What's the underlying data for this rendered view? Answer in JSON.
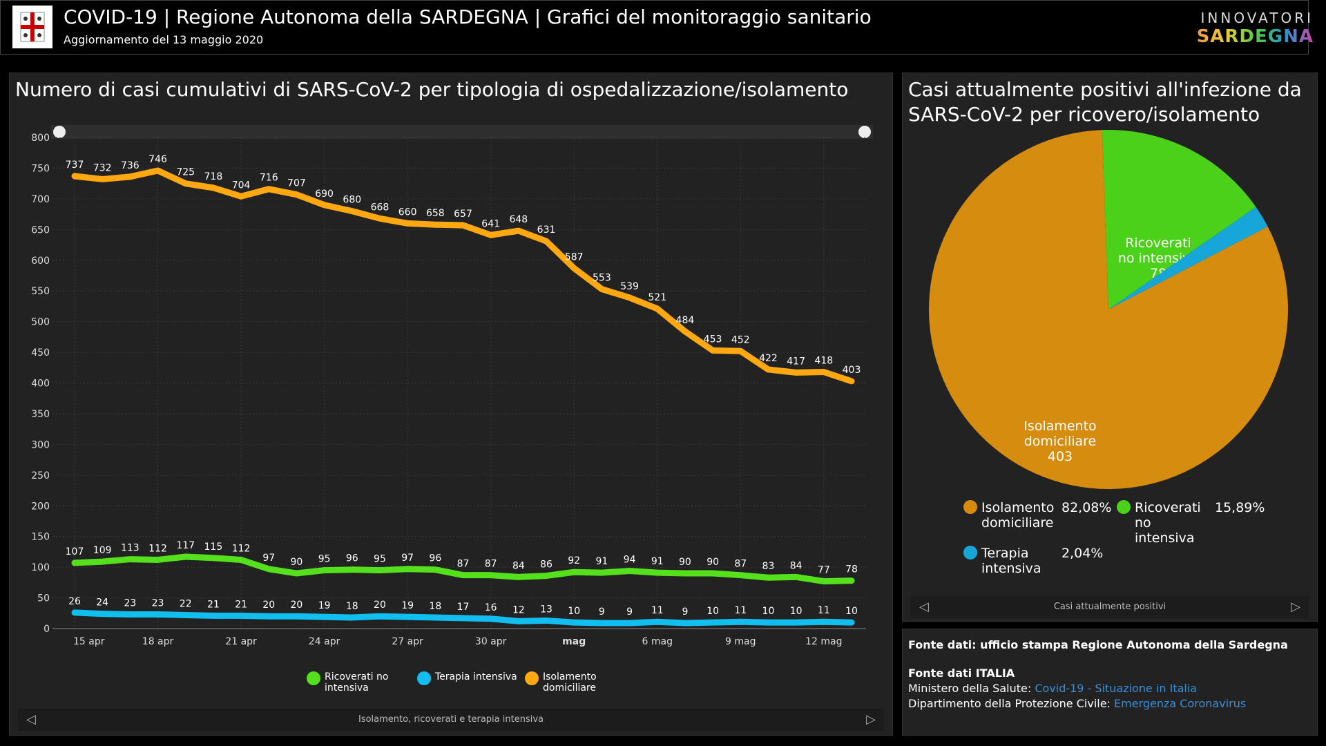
{
  "header": {
    "title": "COVID-19 | Regione Autonoma della SARDEGNA | Grafici del monitoraggio sanitario",
    "subtitle": "Aggiornamento del 13 maggio 2020",
    "brand_top": "INNOVATORI",
    "brand_bottom": "SARDEGNA"
  },
  "left_panel": {
    "title": "Numero di casi cumulativi di SARS-CoV-2 per tipologia di ospedalizzazione/isolamento",
    "footer": "Isolamento, ricoverati e terapia intensiva"
  },
  "right_panel": {
    "title": "Casi attualmente positivi all'infezione da SARS-CoV-2 per ricovero/isolamento",
    "footer": "Casi attualmente positivi"
  },
  "sources": {
    "line1": "Fonte dati: ufficio stampa Regione Autonoma della Sardegna",
    "line2": "Fonte dati ITALIA",
    "ministero_label": "Ministero della Salute: ",
    "ministero_link": "Covid-19 - Situazione in Italia",
    "protezione_label": "Dipartimento della Protezione Civile: ",
    "protezione_link": "Emergenza Coronavirus"
  },
  "chart_data": [
    {
      "type": "line",
      "ylim": [
        0,
        800
      ],
      "yticks": [
        0,
        50,
        100,
        150,
        200,
        250,
        300,
        350,
        400,
        450,
        500,
        550,
        600,
        650,
        700,
        750,
        800
      ],
      "xticks": [
        "15 apr",
        "18 apr",
        "21 apr",
        "24 apr",
        "27 apr",
        "30 apr",
        "mag",
        "6 mag",
        "9 mag",
        "12 mag"
      ],
      "x_start": "2020-04-15",
      "x_end": "2020-05-13",
      "grid": true,
      "legend": "bottom",
      "series": [
        {
          "name": "Ricoverati no intensiva",
          "color": "#55e01c",
          "values": [
            107,
            109,
            113,
            112,
            117,
            115,
            112,
            97,
            90,
            95,
            96,
            95,
            97,
            96,
            87,
            87,
            84,
            86,
            92,
            91,
            94,
            91,
            90,
            90,
            87,
            83,
            84,
            77,
            78
          ]
        },
        {
          "name": "Terapia intensiva",
          "color": "#10bff0",
          "values": [
            26,
            24,
            23,
            23,
            22,
            21,
            21,
            20,
            20,
            19,
            18,
            20,
            19,
            18,
            17,
            16,
            12,
            13,
            10,
            9,
            9,
            11,
            9,
            10,
            11,
            10,
            10,
            11,
            10
          ]
        },
        {
          "name": "Isolamento domiciliare",
          "color": "#ffa812",
          "values": [
            737,
            732,
            736,
            746,
            725,
            718,
            704,
            716,
            707,
            690,
            680,
            668,
            660,
            658,
            657,
            641,
            648,
            631,
            587,
            553,
            539,
            521,
            484,
            453,
            452,
            422,
            417,
            418,
            403
          ]
        }
      ]
    },
    {
      "type": "pie",
      "slices": [
        {
          "name": "Ricoverati no intensiva",
          "label": [
            "Ricoverati",
            "no intensiva"
          ],
          "value": 78,
          "percent": "15,89%",
          "color": "#4cd11a"
        },
        {
          "name": "Terapia intensiva",
          "label": [
            "Terapia",
            "intensiva"
          ],
          "value": 10,
          "percent": "2,04%",
          "color": "#16a6d8"
        },
        {
          "name": "Isolamento domiciliare",
          "label": [
            "Isolamento",
            "domiciliare"
          ],
          "value": 403,
          "percent": "82,08%",
          "color": "#d68c0e"
        }
      ]
    }
  ]
}
